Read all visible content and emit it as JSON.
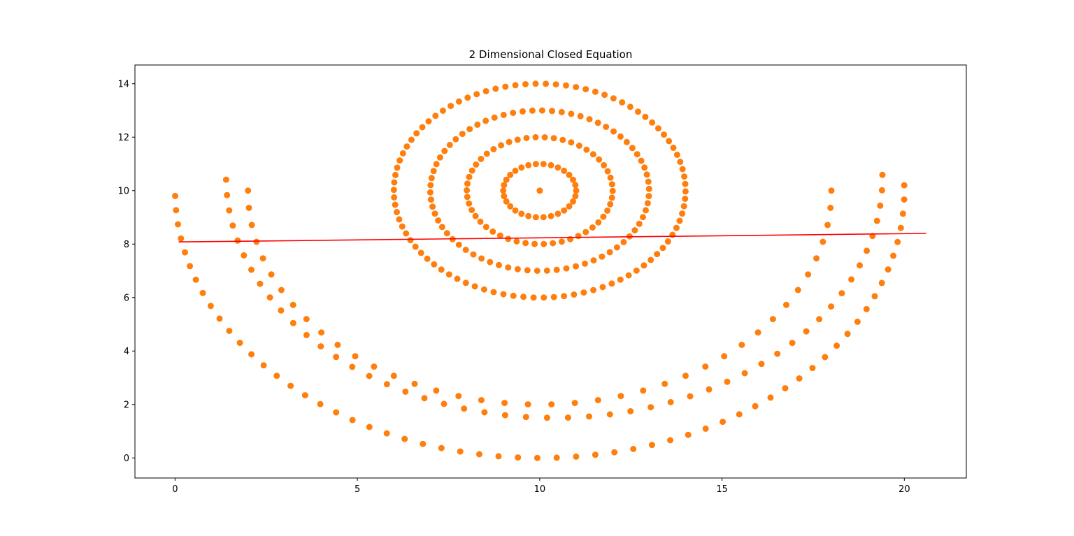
{
  "chart_data": {
    "type": "scatter",
    "title": "2 Dimensional Closed Equation",
    "xlabel": "",
    "ylabel": "",
    "xlim": [
      -1.1,
      21.7
    ],
    "ylim": [
      -0.75,
      14.7
    ],
    "x_ticks": [
      0,
      5,
      10,
      15,
      20
    ],
    "y_ticks": [
      0,
      2,
      4,
      6,
      8,
      10,
      12,
      14
    ],
    "grid": false,
    "colors": {
      "points": "#ff7f0e",
      "line": "#ff0000",
      "axes": "#000000"
    },
    "series": [
      {
        "type": "scatter",
        "description": "concentric circles centered at (10, 10) with radii 1..4 plus center point",
        "center": [
          10,
          10
        ],
        "radii": [
          1,
          2,
          3,
          4
        ],
        "include_center": true,
        "points_per_circle": [
          30,
          50,
          70,
          90
        ]
      },
      {
        "type": "scatter",
        "description": "three lower semicircle arcs centered near (10, 10)",
        "arcs": [
          {
            "center": [
              10,
              10
            ],
            "radius": 8,
            "points": 40
          },
          {
            "center": [
              10.4,
              10.5
            ],
            "radius": 9,
            "points": 50
          },
          {
            "center": [
              10,
              10
            ],
            "radius": 10,
            "points": 60
          }
        ]
      },
      {
        "type": "line",
        "description": "regression line",
        "x": [
          0.1,
          20.6
        ],
        "y": [
          8.08,
          8.4
        ]
      }
    ]
  }
}
